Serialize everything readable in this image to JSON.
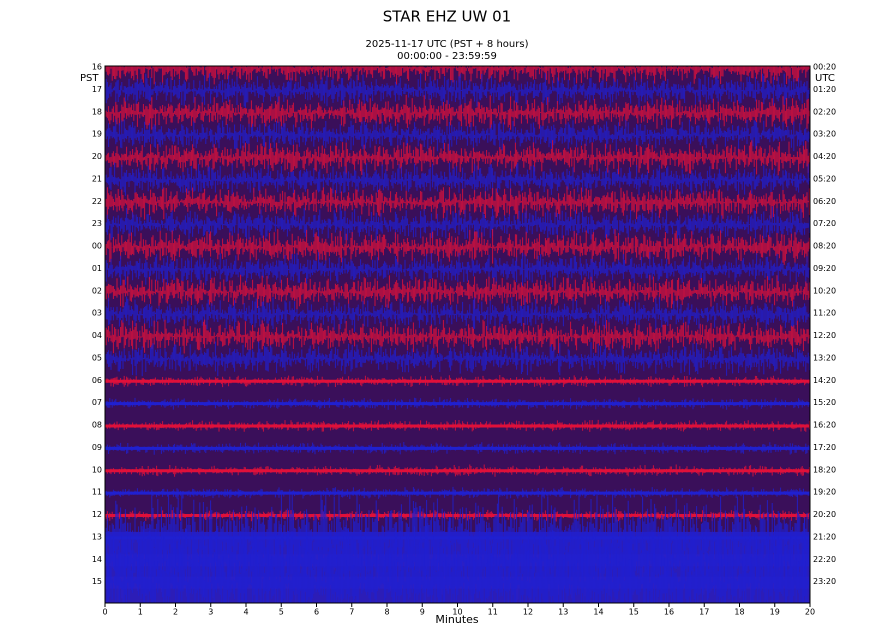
{
  "chart_data": {
    "type": "helicorder",
    "title": "STAR EHZ UW 01",
    "subtitle": [
      "2025-11-17 UTC (PST + 8 hours)",
      "00:00:00 - 23:59:59"
    ],
    "y_axis_label": "PST",
    "y2_axis_label": "UTC",
    "y_labels": [
      "16",
      "17",
      "18",
      "19",
      "20",
      "21",
      "22",
      "23",
      "00",
      "01",
      "02",
      "03",
      "04",
      "05",
      "06",
      "07",
      "08",
      "09",
      "10",
      "11",
      "12",
      "13",
      "14",
      "15"
    ],
    "y2_labels": [
      "00:20",
      "01:20",
      "02:20",
      "03:20",
      "04:20",
      "05:20",
      "06:20",
      "07:20",
      "08:20",
      "09:20",
      "10:20",
      "11:20",
      "12:20",
      "13:20",
      "14:20",
      "15:20",
      "16:20",
      "17:20",
      "18:20",
      "19:20",
      "20:20",
      "21:20",
      "22:20",
      "23:20"
    ],
    "x_label": "Minutes",
    "xlim": [
      0,
      20
    ],
    "xticks": [
      0,
      1,
      2,
      3,
      4,
      5,
      6,
      7,
      8,
      9,
      10,
      11,
      12,
      13,
      14,
      15,
      16,
      17,
      18,
      19,
      20
    ],
    "colors": [
      "#e0103a",
      "#2020d0"
    ]
  }
}
